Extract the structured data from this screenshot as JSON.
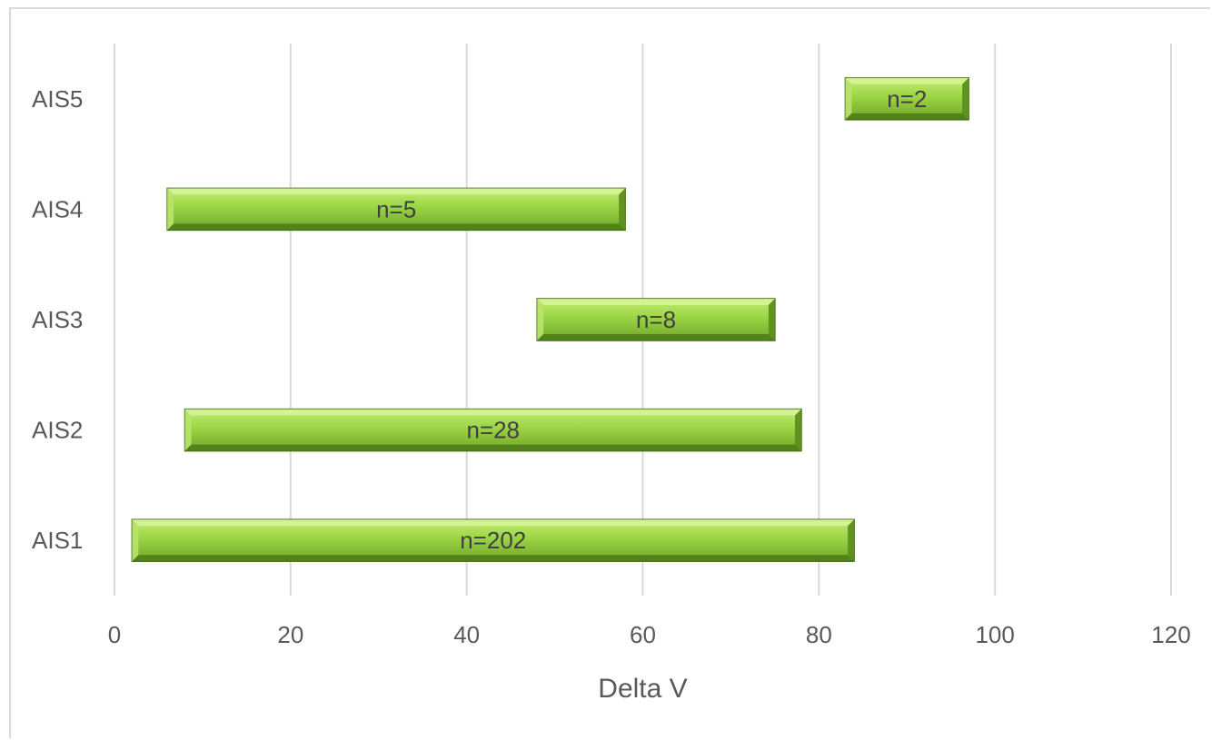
{
  "chart_data": {
    "type": "bar",
    "orientation": "horizontal",
    "subtype": "floating-range",
    "title": "",
    "xlabel": "Delta V",
    "ylabel": "",
    "xlim": [
      0,
      120
    ],
    "x_ticks": [
      0,
      20,
      40,
      60,
      80,
      100,
      120
    ],
    "x_tick_labels": [
      "0",
      "20",
      "40",
      "60",
      "80",
      "100",
      "120"
    ],
    "grid": "vertical",
    "legend": "none",
    "categories": [
      "AIS1",
      "AIS2",
      "AIS3",
      "AIS4",
      "AIS5"
    ],
    "ranges": [
      {
        "category": "AIS1",
        "start": 2,
        "end": 84,
        "label": "n=202"
      },
      {
        "category": "AIS2",
        "start": 8,
        "end": 78,
        "label": "n=28"
      },
      {
        "category": "AIS3",
        "start": 48,
        "end": 75,
        "label": "n=8"
      },
      {
        "category": "AIS4",
        "start": 6,
        "end": 58,
        "label": "n=5"
      },
      {
        "category": "AIS5",
        "start": 83,
        "end": 97,
        "label": "n=2"
      }
    ],
    "colors": {
      "bar_light": "#b5e35a",
      "bar_mid": "#8fcc3b",
      "bar_dark": "#5e8f1f",
      "bar_outline": "#3f6b12",
      "grid": "#d9d9d9",
      "text": "#595959"
    }
  }
}
